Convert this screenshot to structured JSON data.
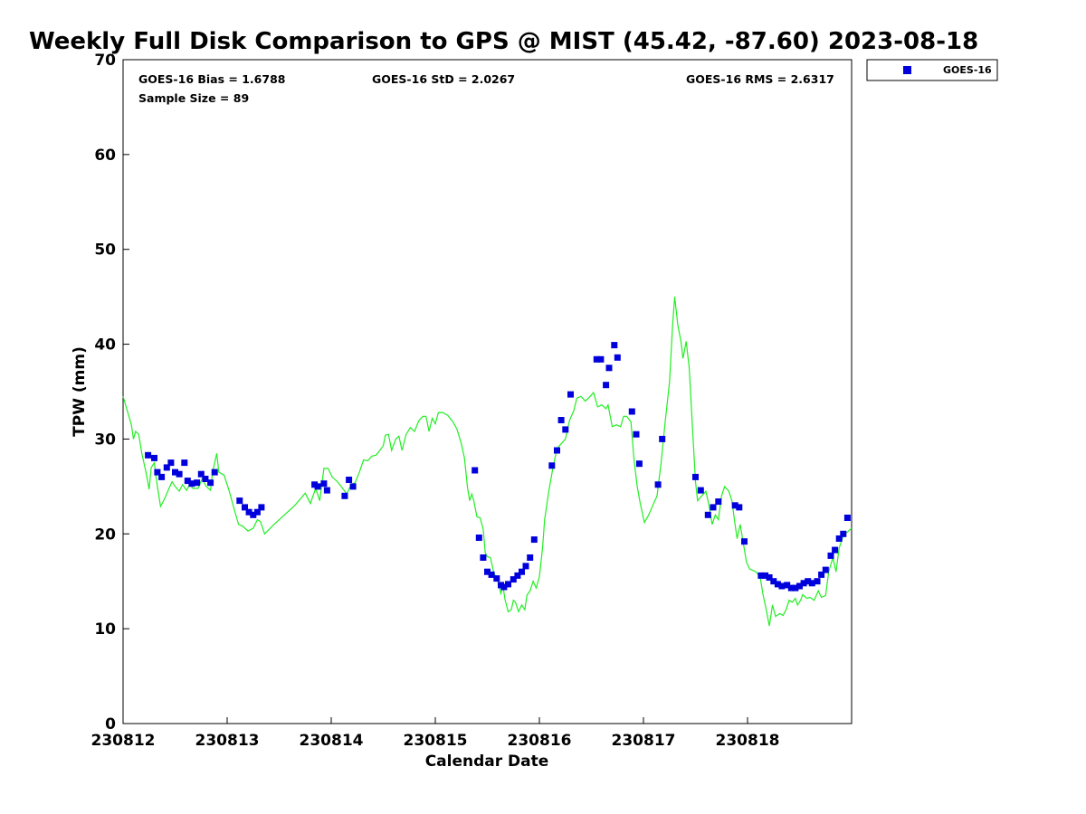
{
  "chart_data": {
    "type": "scatter",
    "title": "Weekly Full Disk Comparison to GPS @ MIST (45.42, -87.60) 2023-08-18",
    "xlabel": "Calendar Date",
    "ylabel": "TPW (mm)",
    "xlim": [
      0,
      7
    ],
    "ylim": [
      0,
      70
    ],
    "x_tick_labels": [
      "230812",
      "230813",
      "230814",
      "230815",
      "230816",
      "230817",
      "230818"
    ],
    "y_tick_labels": [
      "0",
      "10",
      "20",
      "30",
      "40",
      "50",
      "60",
      "70"
    ],
    "y_ticks": [
      0,
      10,
      20,
      30,
      40,
      50,
      60,
      70
    ],
    "grid": false,
    "legend": {
      "position": "top-right",
      "entries": [
        {
          "label": "GOES-16",
          "color": "#0000dd",
          "marker": "square"
        }
      ]
    },
    "stats": {
      "bias": "GOES-16 Bias = 1.6788",
      "std": "GOES-16 StD = 2.0267",
      "rms": "GOES-16 RMS = 2.6317",
      "sample": "Sample Size = 89"
    },
    "colors": {
      "goes": "#0000dd",
      "gps": "#22ee22"
    },
    "series": [
      {
        "name": "GOES-16",
        "type": "scatter",
        "points": [
          [
            0.24,
            28.3
          ],
          [
            0.3,
            28.0
          ],
          [
            0.33,
            26.5
          ],
          [
            0.37,
            26.0
          ],
          [
            0.42,
            27.0
          ],
          [
            0.46,
            27.5
          ],
          [
            0.5,
            26.5
          ],
          [
            0.54,
            26.3
          ],
          [
            0.59,
            27.5
          ],
          [
            0.62,
            25.6
          ],
          [
            0.66,
            25.3
          ],
          [
            0.71,
            25.4
          ],
          [
            0.75,
            26.3
          ],
          [
            0.79,
            25.8
          ],
          [
            0.84,
            25.4
          ],
          [
            0.88,
            26.5
          ],
          [
            1.12,
            23.5
          ],
          [
            1.17,
            22.8
          ],
          [
            1.21,
            22.3
          ],
          [
            1.25,
            22.0
          ],
          [
            1.29,
            22.3
          ],
          [
            1.33,
            22.8
          ],
          [
            1.84,
            25.2
          ],
          [
            1.87,
            25.0
          ],
          [
            1.93,
            25.3
          ],
          [
            1.96,
            24.6
          ],
          [
            2.13,
            24.0
          ],
          [
            2.17,
            25.7
          ],
          [
            2.21,
            25.0
          ],
          [
            3.38,
            26.7
          ],
          [
            3.42,
            19.6
          ],
          [
            3.46,
            17.5
          ],
          [
            3.5,
            16.0
          ],
          [
            3.54,
            15.7
          ],
          [
            3.59,
            15.3
          ],
          [
            3.63,
            14.6
          ],
          [
            3.66,
            14.4
          ],
          [
            3.7,
            14.7
          ],
          [
            3.75,
            15.2
          ],
          [
            3.79,
            15.6
          ],
          [
            3.83,
            16.0
          ],
          [
            3.87,
            16.6
          ],
          [
            3.91,
            17.5
          ],
          [
            3.95,
            19.4
          ],
          [
            4.12,
            27.2
          ],
          [
            4.17,
            28.8
          ],
          [
            4.21,
            32.0
          ],
          [
            4.25,
            31.0
          ],
          [
            4.3,
            34.7
          ],
          [
            4.55,
            38.4
          ],
          [
            4.59,
            38.4
          ],
          [
            4.64,
            35.7
          ],
          [
            4.67,
            37.5
          ],
          [
            4.72,
            39.9
          ],
          [
            4.75,
            38.6
          ],
          [
            4.89,
            32.9
          ],
          [
            4.93,
            30.5
          ],
          [
            4.96,
            27.4
          ],
          [
            5.14,
            25.2
          ],
          [
            5.18,
            30.0
          ],
          [
            5.5,
            26.0
          ],
          [
            5.55,
            24.6
          ],
          [
            5.62,
            22.0
          ],
          [
            5.67,
            22.8
          ],
          [
            5.72,
            23.4
          ],
          [
            5.88,
            23.0
          ],
          [
            5.92,
            22.8
          ],
          [
            5.97,
            19.2
          ],
          [
            6.13,
            15.6
          ],
          [
            6.17,
            15.6
          ],
          [
            6.21,
            15.4
          ],
          [
            6.25,
            15.0
          ],
          [
            6.29,
            14.7
          ],
          [
            6.33,
            14.5
          ],
          [
            6.38,
            14.6
          ],
          [
            6.42,
            14.3
          ],
          [
            6.46,
            14.3
          ],
          [
            6.5,
            14.5
          ],
          [
            6.54,
            14.8
          ],
          [
            6.58,
            15.0
          ],
          [
            6.62,
            14.8
          ],
          [
            6.67,
            15.0
          ],
          [
            6.71,
            15.7
          ],
          [
            6.75,
            16.2
          ],
          [
            6.8,
            17.7
          ],
          [
            6.84,
            18.3
          ],
          [
            6.88,
            19.5
          ],
          [
            6.92,
            20.0
          ],
          [
            6.96,
            21.7
          ]
        ]
      },
      {
        "name": "GPS",
        "type": "line",
        "points": [
          [
            0.0,
            34.5
          ],
          [
            0.04,
            33.0
          ],
          [
            0.08,
            31.5
          ],
          [
            0.1,
            30.0
          ],
          [
            0.12,
            30.8
          ],
          [
            0.15,
            30.5
          ],
          [
            0.18,
            28.5
          ],
          [
            0.22,
            26.5
          ],
          [
            0.25,
            24.7
          ],
          [
            0.27,
            27.0
          ],
          [
            0.3,
            27.5
          ],
          [
            0.33,
            25.0
          ],
          [
            0.36,
            22.9
          ],
          [
            0.39,
            23.5
          ],
          [
            0.43,
            24.5
          ],
          [
            0.47,
            25.5
          ],
          [
            0.5,
            25.0
          ],
          [
            0.54,
            24.5
          ],
          [
            0.57,
            25.2
          ],
          [
            0.61,
            24.6
          ],
          [
            0.64,
            25.2
          ],
          [
            0.67,
            24.8
          ],
          [
            0.72,
            24.8
          ],
          [
            0.76,
            25.8
          ],
          [
            0.8,
            25.0
          ],
          [
            0.84,
            24.6
          ],
          [
            0.86,
            26.5
          ],
          [
            0.9,
            28.5
          ],
          [
            0.92,
            26.5
          ],
          [
            0.97,
            26.2
          ],
          [
            1.02,
            24.5
          ],
          [
            1.07,
            22.5
          ],
          [
            1.11,
            21.0
          ],
          [
            1.15,
            20.8
          ],
          [
            1.2,
            20.3
          ],
          [
            1.25,
            20.6
          ],
          [
            1.29,
            21.5
          ],
          [
            1.32,
            21.3
          ],
          [
            1.36,
            20.0
          ],
          [
            1.45,
            21.0
          ],
          [
            1.55,
            22.0
          ],
          [
            1.65,
            23.0
          ],
          [
            1.75,
            24.3
          ],
          [
            1.8,
            23.2
          ],
          [
            1.85,
            24.8
          ],
          [
            1.89,
            23.5
          ],
          [
            1.93,
            26.9
          ],
          [
            1.97,
            26.9
          ],
          [
            2.01,
            26.0
          ],
          [
            2.06,
            25.5
          ],
          [
            2.11,
            24.8
          ],
          [
            2.15,
            24.2
          ],
          [
            2.19,
            25.2
          ],
          [
            2.23,
            25.4
          ],
          [
            2.27,
            26.5
          ],
          [
            2.31,
            27.8
          ],
          [
            2.35,
            27.7
          ],
          [
            2.39,
            28.2
          ],
          [
            2.43,
            28.3
          ],
          [
            2.46,
            28.7
          ],
          [
            2.5,
            29.3
          ],
          [
            2.52,
            30.4
          ],
          [
            2.55,
            30.5
          ],
          [
            2.58,
            28.8
          ],
          [
            2.62,
            30.0
          ],
          [
            2.65,
            30.3
          ],
          [
            2.68,
            28.8
          ],
          [
            2.72,
            30.5
          ],
          [
            2.76,
            31.2
          ],
          [
            2.8,
            30.8
          ],
          [
            2.84,
            31.9
          ],
          [
            2.88,
            32.4
          ],
          [
            2.91,
            32.4
          ],
          [
            2.94,
            30.8
          ],
          [
            2.97,
            32.2
          ],
          [
            3.0,
            31.6
          ],
          [
            3.03,
            32.8
          ],
          [
            3.07,
            32.8
          ],
          [
            3.12,
            32.5
          ],
          [
            3.17,
            31.8
          ],
          [
            3.21,
            31.0
          ],
          [
            3.25,
            29.5
          ],
          [
            3.28,
            28.0
          ],
          [
            3.31,
            24.8
          ],
          [
            3.33,
            23.5
          ],
          [
            3.35,
            24.2
          ],
          [
            3.37,
            23.5
          ],
          [
            3.4,
            21.8
          ],
          [
            3.43,
            21.7
          ],
          [
            3.46,
            20.5
          ],
          [
            3.48,
            18.0
          ],
          [
            3.5,
            17.6
          ],
          [
            3.53,
            17.5
          ],
          [
            3.56,
            16.0
          ],
          [
            3.6,
            15.0
          ],
          [
            3.63,
            13.7
          ],
          [
            3.65,
            14.5
          ],
          [
            3.67,
            13.1
          ],
          [
            3.7,
            11.8
          ],
          [
            3.73,
            12.0
          ],
          [
            3.75,
            13.0
          ],
          [
            3.77,
            12.8
          ],
          [
            3.8,
            11.8
          ],
          [
            3.83,
            12.5
          ],
          [
            3.86,
            12.0
          ],
          [
            3.88,
            13.5
          ],
          [
            3.91,
            14.0
          ],
          [
            3.94,
            15.0
          ],
          [
            3.97,
            14.3
          ],
          [
            4.0,
            15.5
          ],
          [
            4.03,
            18.5
          ],
          [
            4.05,
            21.5
          ],
          [
            4.09,
            24.5
          ],
          [
            4.13,
            27.0
          ],
          [
            4.17,
            29.0
          ],
          [
            4.21,
            29.5
          ],
          [
            4.25,
            30.0
          ],
          [
            4.29,
            32.0
          ],
          [
            4.33,
            33.0
          ],
          [
            4.36,
            34.3
          ],
          [
            4.4,
            34.5
          ],
          [
            4.44,
            34.0
          ],
          [
            4.48,
            34.4
          ],
          [
            4.52,
            34.9
          ],
          [
            4.56,
            33.4
          ],
          [
            4.6,
            33.6
          ],
          [
            4.64,
            33.2
          ],
          [
            4.66,
            33.6
          ],
          [
            4.7,
            31.3
          ],
          [
            4.74,
            31.5
          ],
          [
            4.78,
            31.3
          ],
          [
            4.81,
            32.4
          ],
          [
            4.84,
            32.4
          ],
          [
            4.88,
            31.8
          ],
          [
            4.91,
            27.8
          ],
          [
            4.94,
            25.0
          ],
          [
            4.97,
            23.2
          ],
          [
            5.01,
            21.2
          ],
          [
            5.05,
            22.0
          ],
          [
            5.09,
            23.0
          ],
          [
            5.13,
            24.0
          ],
          [
            5.17,
            27.5
          ],
          [
            5.21,
            32.0
          ],
          [
            5.25,
            36.0
          ],
          [
            5.28,
            42.0
          ],
          [
            5.3,
            45.0
          ],
          [
            5.33,
            42.0
          ],
          [
            5.36,
            40.3
          ],
          [
            5.38,
            38.5
          ],
          [
            5.41,
            40.3
          ],
          [
            5.44,
            37.5
          ],
          [
            5.47,
            31.5
          ],
          [
            5.5,
            25.5
          ],
          [
            5.52,
            23.5
          ],
          [
            5.56,
            24.0
          ],
          [
            5.6,
            24.5
          ],
          [
            5.63,
            23.0
          ],
          [
            5.66,
            21.0
          ],
          [
            5.69,
            22.0
          ],
          [
            5.72,
            21.5
          ],
          [
            5.75,
            24.0
          ],
          [
            5.78,
            25.0
          ],
          [
            5.82,
            24.5
          ],
          [
            5.85,
            23.5
          ],
          [
            5.88,
            21.0
          ],
          [
            5.9,
            19.5
          ],
          [
            5.93,
            21.0
          ],
          [
            5.96,
            19.0
          ],
          [
            5.99,
            17.0
          ],
          [
            6.02,
            16.3
          ],
          [
            6.08,
            16.0
          ],
          [
            6.12,
            15.5
          ],
          [
            6.15,
            13.5
          ],
          [
            6.18,
            12.0
          ],
          [
            6.21,
            10.3
          ],
          [
            6.24,
            12.5
          ],
          [
            6.27,
            11.3
          ],
          [
            6.31,
            11.6
          ],
          [
            6.34,
            11.4
          ],
          [
            6.37,
            12.0
          ],
          [
            6.4,
            13.0
          ],
          [
            6.43,
            12.8
          ],
          [
            6.46,
            13.2
          ],
          [
            6.48,
            12.5
          ],
          [
            6.51,
            13.0
          ],
          [
            6.53,
            13.6
          ],
          [
            6.57,
            13.2
          ],
          [
            6.6,
            13.3
          ],
          [
            6.64,
            13.0
          ],
          [
            6.68,
            14.0
          ],
          [
            6.71,
            13.3
          ],
          [
            6.75,
            13.5
          ],
          [
            6.78,
            16.0
          ],
          [
            6.82,
            17.5
          ],
          [
            6.85,
            16.0
          ],
          [
            6.88,
            18.5
          ],
          [
            6.92,
            19.8
          ],
          [
            6.96,
            20.2
          ],
          [
            7.0,
            20.6
          ]
        ]
      }
    ]
  }
}
